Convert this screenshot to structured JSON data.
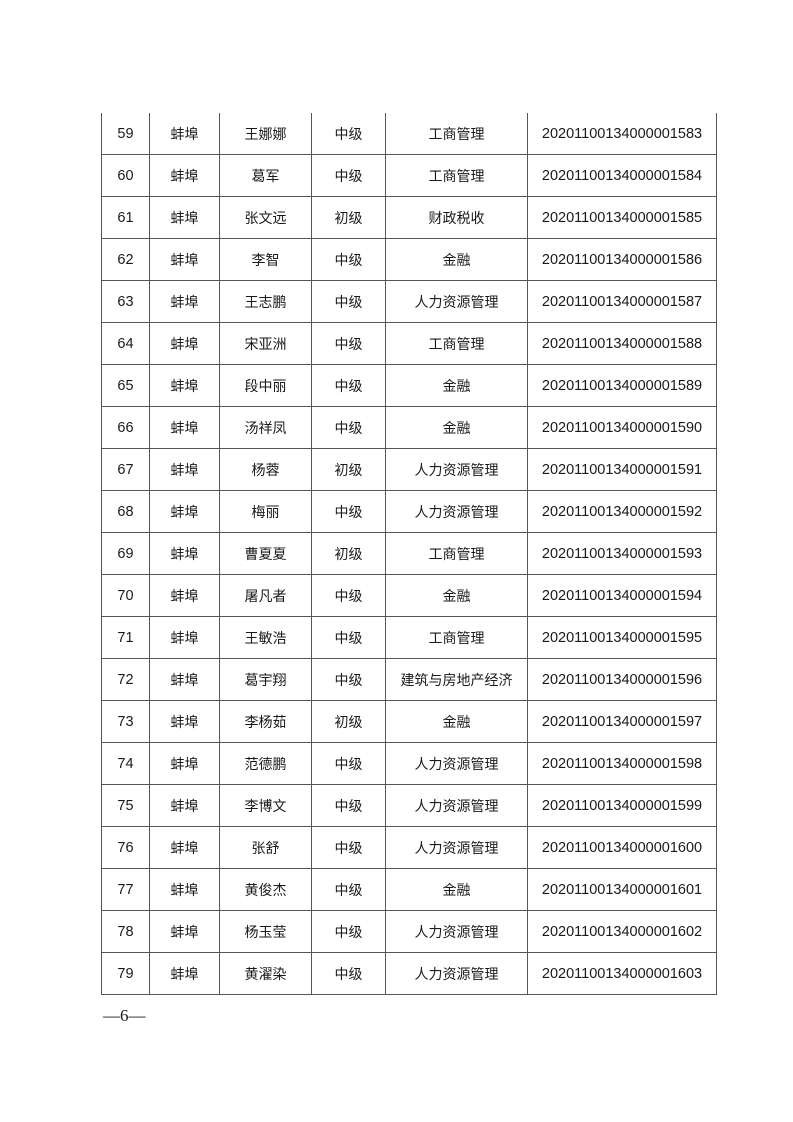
{
  "rows": [
    {
      "no": "59",
      "city": "蚌埠",
      "name": "王娜娜",
      "level": "中级",
      "major": "工商管理",
      "cert": "2020110013400000​1583"
    },
    {
      "no": "60",
      "city": "蚌埠",
      "name": "葛军",
      "level": "中级",
      "major": "工商管理",
      "cert": "20201100134000001584"
    },
    {
      "no": "61",
      "city": "蚌埠",
      "name": "张文远",
      "level": "初级",
      "major": "财政税收",
      "cert": "20201100134000001585"
    },
    {
      "no": "62",
      "city": "蚌埠",
      "name": "李智",
      "level": "中级",
      "major": "金融",
      "cert": "20201100134000001586"
    },
    {
      "no": "63",
      "city": "蚌埠",
      "name": "王志鹏",
      "level": "中级",
      "major": "人力资源管理",
      "cert": "20201100134000001587"
    },
    {
      "no": "64",
      "city": "蚌埠",
      "name": "宋亚洲",
      "level": "中级",
      "major": "工商管理",
      "cert": "20201100134000001588"
    },
    {
      "no": "65",
      "city": "蚌埠",
      "name": "段中丽",
      "level": "中级",
      "major": "金融",
      "cert": "20201100134000001589"
    },
    {
      "no": "66",
      "city": "蚌埠",
      "name": "汤祥凤",
      "level": "中级",
      "major": "金融",
      "cert": "20201100134000001590"
    },
    {
      "no": "67",
      "city": "蚌埠",
      "name": "杨蓉",
      "level": "初级",
      "major": "人力资源管理",
      "cert": "20201100134000001591"
    },
    {
      "no": "68",
      "city": "蚌埠",
      "name": "梅丽",
      "level": "中级",
      "major": "人力资源管理",
      "cert": "20201100134000001592"
    },
    {
      "no": "69",
      "city": "蚌埠",
      "name": "曹夏夏",
      "level": "初级",
      "major": "工商管理",
      "cert": "20201100134000001593"
    },
    {
      "no": "70",
      "city": "蚌埠",
      "name": "屠凡者",
      "level": "中级",
      "major": "金融",
      "cert": "20201100134000001594"
    },
    {
      "no": "71",
      "city": "蚌埠",
      "name": "王敏浩",
      "level": "中级",
      "major": "工商管理",
      "cert": "20201100134000001595"
    },
    {
      "no": "72",
      "city": "蚌埠",
      "name": "葛宇翔",
      "level": "中级",
      "major": "建筑与房地产经济",
      "cert": "20201100134000001596"
    },
    {
      "no": "73",
      "city": "蚌埠",
      "name": "李杨茹",
      "level": "初级",
      "major": "金融",
      "cert": "20201100134000001597"
    },
    {
      "no": "74",
      "city": "蚌埠",
      "name": "范德鹏",
      "level": "中级",
      "major": "人力资源管理",
      "cert": "20201100134000001598"
    },
    {
      "no": "75",
      "city": "蚌埠",
      "name": "李博文",
      "level": "中级",
      "major": "人力资源管理",
      "cert": "20201100134000001599"
    },
    {
      "no": "76",
      "city": "蚌埠",
      "name": "张舒",
      "level": "中级",
      "major": "人力资源管理",
      "cert": "20201100134000001600"
    },
    {
      "no": "77",
      "city": "蚌埠",
      "name": "黄俊杰",
      "level": "中级",
      "major": "金融",
      "cert": "20201100134000001601"
    },
    {
      "no": "78",
      "city": "蚌埠",
      "name": "杨玉莹",
      "level": "中级",
      "major": "人力资源管理",
      "cert": "20201100134000001602"
    },
    {
      "no": "79",
      "city": "蚌埠",
      "name": "黄濯染",
      "level": "中级",
      "major": "人力资源管理",
      "cert": "20201100134000001603"
    }
  ],
  "page_number": "—6—"
}
